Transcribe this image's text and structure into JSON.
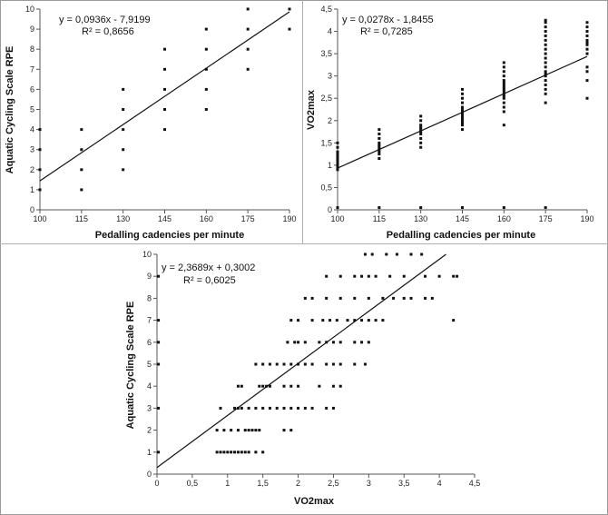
{
  "chart_data": [
    {
      "type": "scatter",
      "xlabel": "Pedalling cadencies per minute",
      "ylabel": "Aquatic Cycling Scale RPE",
      "xlim": [
        100,
        190
      ],
      "ylim": [
        0,
        10
      ],
      "xticks": [
        "100",
        "115",
        "130",
        "145",
        "160",
        "175",
        "190"
      ],
      "yticks": [
        "0",
        "1",
        "2",
        "3",
        "4",
        "5",
        "6",
        "7",
        "8",
        "9",
        "10"
      ],
      "equation": "y = 0,0936x - 7,9199",
      "r2": "R² = 0,8656",
      "trendline": {
        "slope": 0.0936,
        "intercept": -7.9199
      },
      "points": [
        [
          100,
          1
        ],
        [
          100,
          2
        ],
        [
          100,
          3
        ],
        [
          100,
          4
        ],
        [
          115,
          1
        ],
        [
          115,
          2
        ],
        [
          115,
          3
        ],
        [
          115,
          4
        ],
        [
          130,
          2
        ],
        [
          130,
          3
        ],
        [
          130,
          4
        ],
        [
          130,
          5
        ],
        [
          130,
          6
        ],
        [
          145,
          4
        ],
        [
          145,
          5
        ],
        [
          145,
          6
        ],
        [
          145,
          7
        ],
        [
          145,
          8
        ],
        [
          160,
          5
        ],
        [
          160,
          6
        ],
        [
          160,
          7
        ],
        [
          160,
          8
        ],
        [
          160,
          9
        ],
        [
          175,
          7
        ],
        [
          175,
          8
        ],
        [
          175,
          9
        ],
        [
          175,
          10
        ],
        [
          190,
          9
        ],
        [
          190,
          10
        ]
      ]
    },
    {
      "type": "scatter",
      "xlabel": "Pedalling cadencies per minute",
      "ylabel": "VO2max",
      "xlim": [
        100,
        190
      ],
      "ylim": [
        0,
        4.5
      ],
      "xticks": [
        "100",
        "115",
        "130",
        "145",
        "160",
        "175",
        "190"
      ],
      "yticks": [
        "0",
        "0,5",
        "1",
        "1,5",
        "2",
        "2,5",
        "3",
        "3,5",
        "4",
        "4,5"
      ],
      "equation": "y = 0,0278x - 1,8455",
      "r2": "R² = 0,7285",
      "trendline": {
        "slope": 0.0278,
        "intercept": -1.8455
      },
      "points": [
        [
          100,
          0.9
        ],
        [
          100,
          0.95
        ],
        [
          100,
          1.0
        ],
        [
          100,
          1.05
        ],
        [
          100,
          1.1
        ],
        [
          100,
          1.15
        ],
        [
          100,
          1.2
        ],
        [
          100,
          1.25
        ],
        [
          100,
          1.3
        ],
        [
          100,
          1.4
        ],
        [
          100,
          1.5
        ],
        [
          100,
          0.05
        ],
        [
          115,
          1.15
        ],
        [
          115,
          1.25
        ],
        [
          115,
          1.3
        ],
        [
          115,
          1.35
        ],
        [
          115,
          1.4
        ],
        [
          115,
          1.45
        ],
        [
          115,
          1.5
        ],
        [
          115,
          1.6
        ],
        [
          115,
          1.7
        ],
        [
          115,
          1.8
        ],
        [
          115,
          0.05
        ],
        [
          130,
          1.4
        ],
        [
          130,
          1.5
        ],
        [
          130,
          1.6
        ],
        [
          130,
          1.7
        ],
        [
          130,
          1.75
        ],
        [
          130,
          1.8
        ],
        [
          130,
          1.85
        ],
        [
          130,
          1.9
        ],
        [
          130,
          2.0
        ],
        [
          130,
          2.1
        ],
        [
          130,
          0.05
        ],
        [
          145,
          1.8
        ],
        [
          145,
          1.9
        ],
        [
          145,
          1.95
        ],
        [
          145,
          2.0
        ],
        [
          145,
          2.05
        ],
        [
          145,
          2.1
        ],
        [
          145,
          2.15
        ],
        [
          145,
          2.2
        ],
        [
          145,
          2.25
        ],
        [
          145,
          2.3
        ],
        [
          145,
          2.4
        ],
        [
          145,
          2.5
        ],
        [
          145,
          2.6
        ],
        [
          145,
          2.7
        ],
        [
          145,
          0.05
        ],
        [
          160,
          1.9
        ],
        [
          160,
          2.2
        ],
        [
          160,
          2.3
        ],
        [
          160,
          2.4
        ],
        [
          160,
          2.5
        ],
        [
          160,
          2.55
        ],
        [
          160,
          2.6
        ],
        [
          160,
          2.65
        ],
        [
          160,
          2.7
        ],
        [
          160,
          2.75
        ],
        [
          160,
          2.8
        ],
        [
          160,
          2.85
        ],
        [
          160,
          2.9
        ],
        [
          160,
          3.0
        ],
        [
          160,
          3.1
        ],
        [
          160,
          3.2
        ],
        [
          160,
          3.3
        ],
        [
          160,
          0.05
        ],
        [
          175,
          2.4
        ],
        [
          175,
          2.6
        ],
        [
          175,
          2.7
        ],
        [
          175,
          2.8
        ],
        [
          175,
          2.9
        ],
        [
          175,
          3.0
        ],
        [
          175,
          3.05
        ],
        [
          175,
          3.1
        ],
        [
          175,
          3.2
        ],
        [
          175,
          3.3
        ],
        [
          175,
          3.4
        ],
        [
          175,
          3.5
        ],
        [
          175,
          3.6
        ],
        [
          175,
          3.7
        ],
        [
          175,
          3.8
        ],
        [
          175,
          3.9
        ],
        [
          175,
          4.0
        ],
        [
          175,
          4.1
        ],
        [
          175,
          4.2
        ],
        [
          175,
          4.25
        ],
        [
          175,
          0.05
        ],
        [
          190,
          2.5
        ],
        [
          190,
          2.9
        ],
        [
          190,
          3.1
        ],
        [
          190,
          3.2
        ],
        [
          190,
          3.5
        ],
        [
          190,
          3.6
        ],
        [
          190,
          3.7
        ],
        [
          190,
          3.75
        ],
        [
          190,
          3.8
        ],
        [
          190,
          3.9
        ],
        [
          190,
          4.0
        ],
        [
          190,
          4.1
        ],
        [
          190,
          4.2
        ]
      ]
    },
    {
      "type": "scatter",
      "xlabel": "VO2max",
      "ylabel": "Aquatic Cycling Scale RPE",
      "xlim": [
        0,
        4.5
      ],
      "ylim": [
        0,
        10
      ],
      "xticks": [
        "0",
        "0,5",
        "1",
        "1,5",
        "2",
        "2,5",
        "3",
        "3,5",
        "4",
        "4,5"
      ],
      "yticks": [
        "0",
        "1",
        "2",
        "3",
        "4",
        "5",
        "6",
        "7",
        "8",
        "9",
        "10"
      ],
      "equation": "y = 2,3689x + 0,3002",
      "r2": "R² = 0,6025",
      "trendline": {
        "slope": 2.3689,
        "intercept": 0.3002
      },
      "points": [
        [
          0.02,
          1
        ],
        [
          0.02,
          3
        ],
        [
          0.02,
          5
        ],
        [
          0.02,
          6
        ],
        [
          0.02,
          7
        ],
        [
          0.02,
          9
        ],
        [
          0.85,
          1
        ],
        [
          0.9,
          1
        ],
        [
          0.95,
          1
        ],
        [
          1.0,
          1
        ],
        [
          1.05,
          1
        ],
        [
          1.1,
          1
        ],
        [
          1.15,
          1
        ],
        [
          1.2,
          1
        ],
        [
          1.25,
          1
        ],
        [
          1.3,
          1
        ],
        [
          1.4,
          1
        ],
        [
          1.5,
          1
        ],
        [
          0.85,
          2
        ],
        [
          0.95,
          2
        ],
        [
          1.05,
          2
        ],
        [
          1.15,
          2
        ],
        [
          1.25,
          2
        ],
        [
          1.3,
          2
        ],
        [
          1.35,
          2
        ],
        [
          1.4,
          2
        ],
        [
          1.45,
          2
        ],
        [
          1.8,
          2
        ],
        [
          1.9,
          2
        ],
        [
          0.9,
          3
        ],
        [
          1.1,
          3
        ],
        [
          1.15,
          3
        ],
        [
          1.2,
          3
        ],
        [
          1.3,
          3
        ],
        [
          1.4,
          3
        ],
        [
          1.5,
          3
        ],
        [
          1.6,
          3
        ],
        [
          1.7,
          3
        ],
        [
          1.8,
          3
        ],
        [
          1.9,
          3
        ],
        [
          2.0,
          3
        ],
        [
          2.1,
          3
        ],
        [
          2.2,
          3
        ],
        [
          2.4,
          3
        ],
        [
          2.5,
          3
        ],
        [
          1.15,
          4
        ],
        [
          1.2,
          4
        ],
        [
          1.45,
          4
        ],
        [
          1.5,
          4
        ],
        [
          1.55,
          4
        ],
        [
          1.6,
          4
        ],
        [
          1.8,
          4
        ],
        [
          1.9,
          4
        ],
        [
          2.0,
          4
        ],
        [
          2.3,
          4
        ],
        [
          2.5,
          4
        ],
        [
          2.6,
          4
        ],
        [
          1.4,
          5
        ],
        [
          1.5,
          5
        ],
        [
          1.6,
          5
        ],
        [
          1.7,
          5
        ],
        [
          1.8,
          5
        ],
        [
          1.9,
          5
        ],
        [
          2.0,
          5
        ],
        [
          2.1,
          5
        ],
        [
          2.2,
          5
        ],
        [
          2.4,
          5
        ],
        [
          2.5,
          5
        ],
        [
          2.6,
          5
        ],
        [
          2.8,
          5
        ],
        [
          2.95,
          5
        ],
        [
          1.85,
          6
        ],
        [
          1.95,
          6
        ],
        [
          2.0,
          6
        ],
        [
          2.1,
          6
        ],
        [
          2.3,
          6
        ],
        [
          2.4,
          6
        ],
        [
          2.5,
          6
        ],
        [
          2.6,
          6
        ],
        [
          2.8,
          6
        ],
        [
          2.9,
          6
        ],
        [
          3.0,
          6
        ],
        [
          1.9,
          7
        ],
        [
          2.0,
          7
        ],
        [
          2.2,
          7
        ],
        [
          2.35,
          7
        ],
        [
          2.45,
          7
        ],
        [
          2.55,
          7
        ],
        [
          2.7,
          7
        ],
        [
          2.8,
          7
        ],
        [
          2.9,
          7
        ],
        [
          3.0,
          7
        ],
        [
          3.1,
          7
        ],
        [
          3.2,
          7
        ],
        [
          4.2,
          7
        ],
        [
          2.1,
          8
        ],
        [
          2.2,
          8
        ],
        [
          2.4,
          8
        ],
        [
          2.6,
          8
        ],
        [
          2.8,
          8
        ],
        [
          3.0,
          8
        ],
        [
          3.2,
          8
        ],
        [
          3.35,
          8
        ],
        [
          3.5,
          8
        ],
        [
          3.6,
          8
        ],
        [
          3.8,
          8
        ],
        [
          3.9,
          8
        ],
        [
          2.4,
          9
        ],
        [
          2.6,
          9
        ],
        [
          2.8,
          9
        ],
        [
          2.9,
          9
        ],
        [
          3.0,
          9
        ],
        [
          3.1,
          9
        ],
        [
          3.3,
          9
        ],
        [
          3.5,
          9
        ],
        [
          3.8,
          9
        ],
        [
          4.0,
          9
        ],
        [
          4.2,
          9
        ],
        [
          4.25,
          9
        ],
        [
          2.95,
          10
        ],
        [
          3.05,
          10
        ],
        [
          3.25,
          10
        ],
        [
          3.4,
          10
        ],
        [
          3.6,
          10
        ],
        [
          3.75,
          10
        ]
      ]
    }
  ]
}
